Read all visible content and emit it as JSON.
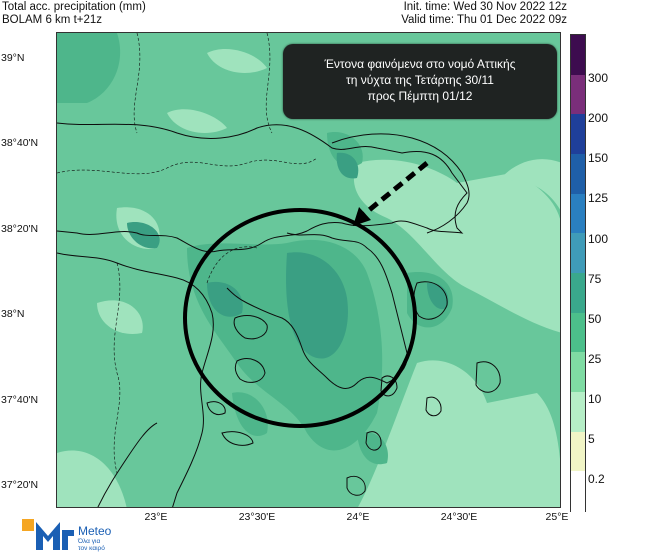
{
  "header": {
    "left_line1": "Total acc. precipitation (mm)",
    "left_line2": "BOLAM 6 km t+21z",
    "right_line1": "Init. time: Wed 30 Nov 2022 12z",
    "right_line2": "Valid time: Thu 01 Dec 2022 09z"
  },
  "lat_labels": [
    "39°N",
    "38°40'N",
    "38°20'N",
    "38°N",
    "37°40'N",
    "37°20'N"
  ],
  "lon_labels": [
    "23°E",
    "23°30'E",
    "24°E",
    "24°30'E",
    "25°E"
  ],
  "colorbar": {
    "labels": [
      "300",
      "200",
      "150",
      "125",
      "100",
      "75",
      "50",
      "25",
      "10",
      "5",
      "0.2"
    ],
    "colors": [
      "#3d0c4f",
      "#7a2e7a",
      "#1f3f9a",
      "#1f5fa8",
      "#2a7fc0",
      "#3f9bb8",
      "#3aa88c",
      "#4cbf8b",
      "#7fdba3",
      "#b6eec7",
      "#f1f5c6",
      "#ffffff"
    ]
  },
  "map_colors": {
    "base": "#68c79b",
    "light": "#9fe3bd",
    "medium": "#4eb68b",
    "dark": "#3a9f83",
    "coast": "#0d0d0d"
  },
  "callout": {
    "line1": "Έντονα φαινόμενα στο νομό Αττικής",
    "line2": "τη νύχτα της Τετάρτης 30/11",
    "line3": "προς  Πέμπτη  01/12"
  },
  "logo": {
    "brand": "Meteo",
    "tagline1": "Όλα για",
    "tagline2": "τον καιρό"
  }
}
